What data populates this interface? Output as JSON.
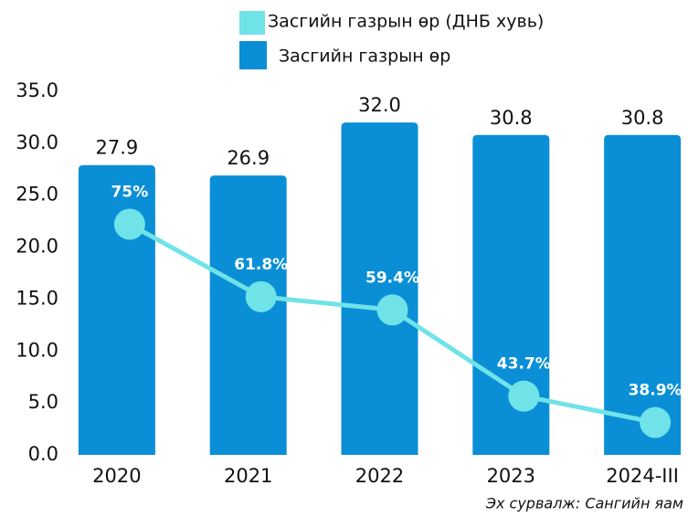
{
  "chart_data": {
    "type": "bar_line",
    "categories": [
      "2020",
      "2021",
      "2022",
      "2023",
      "2024-III"
    ],
    "series": [
      {
        "name": "Засгийн газрын өр",
        "type": "bar",
        "color": "#0a8fd6",
        "values": [
          27.9,
          26.9,
          32.0,
          30.8,
          30.8
        ],
        "value_labels": [
          "27.9",
          "26.9",
          "32.0",
          "30.8",
          "30.8"
        ]
      },
      {
        "name": "Засгийн газрын өр (ДНБ хувь)",
        "type": "line",
        "axis": "y2",
        "color": "#6fe3e8",
        "values": [
          75,
          61.8,
          59.4,
          43.7,
          38.9
        ],
        "value_labels": [
          "75%",
          "61.8%",
          "59.4%",
          "43.7%",
          "38.9%"
        ]
      }
    ],
    "ylim": [
      0,
      35
    ],
    "yticks": [
      {
        "value": 0,
        "label": "0.0"
      },
      {
        "value": 5,
        "label": "5.0"
      },
      {
        "value": 10,
        "label": "10.0"
      },
      {
        "value": 15,
        "label": "15.0"
      },
      {
        "value": 20,
        "label": "20.0"
      },
      {
        "value": 25,
        "label": "25.0"
      },
      {
        "value": 30,
        "label": "30.0"
      },
      {
        "value": 35,
        "label": "35.0"
      }
    ],
    "y2lim": [
      33,
      99.2
    ],
    "source": "Эх сурвалж: Сангийн яам"
  }
}
